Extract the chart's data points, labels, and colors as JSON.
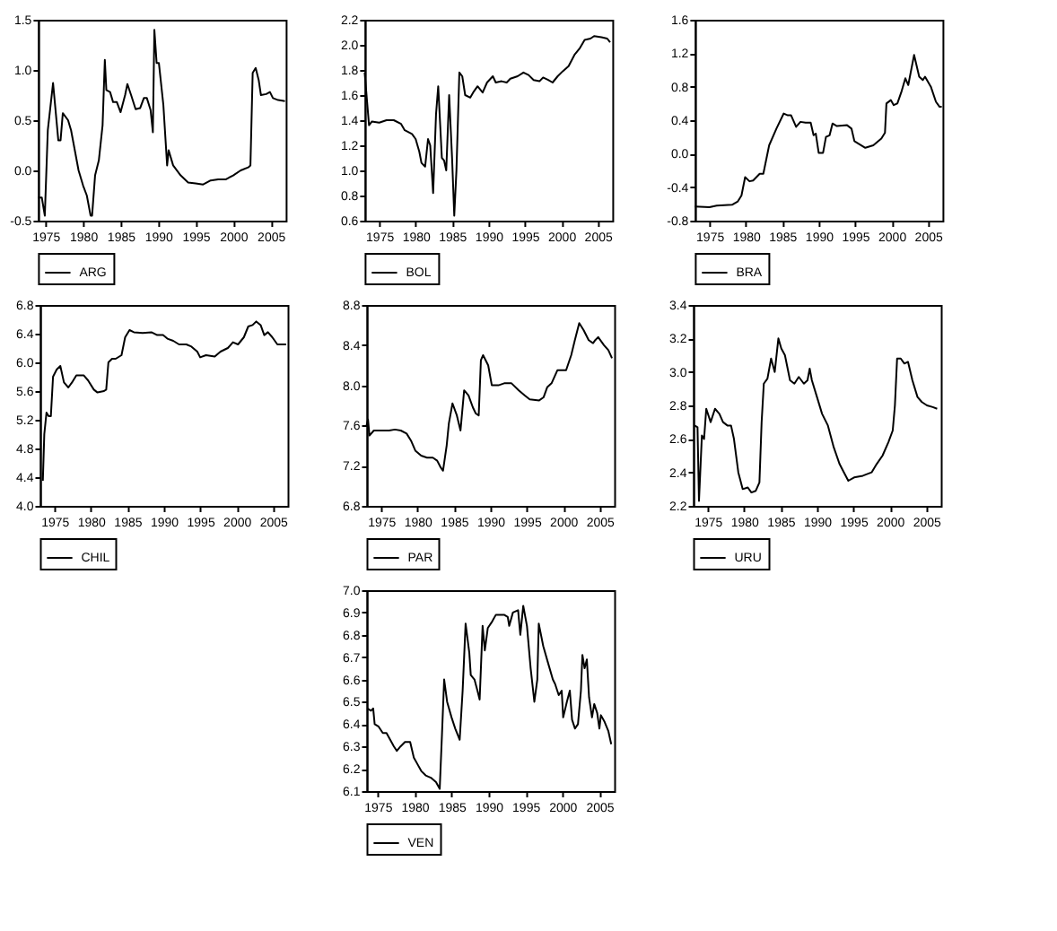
{
  "chart_data": [
    {
      "type": "line",
      "xlim": [
        1974,
        2007
      ],
      "xticks": [
        1975,
        1980,
        1985,
        1990,
        1995,
        2000,
        2005
      ],
      "ylim": [
        -0.5,
        1.5
      ],
      "yticks": [
        -0.5,
        {
          "value": 0,
          "label": "0.0"
        },
        0.5,
        {
          "value": 1,
          "label": "1.0"
        },
        1.5
      ],
      "legend": "bottom",
      "x": [
        1974.0,
        1974.5,
        1974.9,
        1975.3,
        1976.0,
        1976.7,
        1977.0,
        1977.3,
        1978.0,
        1978.4,
        1979.4,
        1980.0,
        1980.5,
        1981.0,
        1981.2,
        1981.6,
        1982.1,
        1982.6,
        1982.9,
        1983.1,
        1983.6,
        1984.0,
        1984.5,
        1985.0,
        1985.6,
        1985.9,
        1986.4,
        1987.0,
        1987.6,
        1988.1,
        1988.5,
        1989.0,
        1989.3,
        1989.5,
        1989.8,
        1990.1,
        1990.7,
        1991.2,
        1991.4,
        1992.0,
        1993.0,
        1994.0,
        1995.0,
        1996.0,
        1997.0,
        1998.0,
        1999.0,
        2000.0,
        2001.0,
        2002.0,
        2002.3,
        2002.6,
        2003.0,
        2003.4,
        2003.7,
        2004.4,
        2004.9,
        2005.3,
        2006.0,
        2006.9
      ],
      "series": [
        {
          "name": "ARG",
          "color": "#000000",
          "values": [
            -0.27,
            -0.27,
            -0.45,
            0.4,
            0.87,
            0.3,
            0.3,
            0.57,
            0.5,
            0.4,
            0.0,
            -0.15,
            -0.25,
            -0.45,
            -0.45,
            -0.05,
            0.1,
            0.45,
            1.1,
            0.8,
            0.78,
            0.68,
            0.68,
            0.58,
            0.75,
            0.86,
            0.75,
            0.61,
            0.62,
            0.72,
            0.72,
            0.6,
            0.38,
            1.4,
            1.07,
            1.07,
            0.65,
            0.05,
            0.2,
            0.05,
            -0.05,
            -0.12,
            -0.13,
            -0.14,
            -0.1,
            -0.09,
            -0.09,
            -0.05,
            0.0,
            0.03,
            0.05,
            0.97,
            1.02,
            0.9,
            0.75,
            0.76,
            0.78,
            0.72,
            0.7,
            0.69
          ]
        }
      ]
    },
    {
      "type": "line",
      "xlim": [
        1973,
        2007
      ],
      "xticks": [
        1975,
        1980,
        1985,
        1990,
        1995,
        2000,
        2005
      ],
      "ylim": [
        0.6,
        2.2
      ],
      "yticks": [
        0.6,
        0.8,
        {
          "value": 1,
          "label": "1.0"
        },
        1.2,
        1.4,
        1.6,
        1.8,
        {
          "value": 2,
          "label": "2.0"
        },
        2.2
      ],
      "legend": "bottom",
      "x": [
        1973.0,
        1973.6,
        1974.0,
        1975.0,
        1976.0,
        1977.0,
        1978.0,
        1978.5,
        1979.5,
        1980.0,
        1980.5,
        1980.8,
        1981.3,
        1981.7,
        1982.0,
        1982.4,
        1982.8,
        1983.1,
        1983.6,
        1983.9,
        1984.2,
        1984.6,
        1985.0,
        1985.3,
        1985.6,
        1986.0,
        1986.4,
        1986.8,
        1987.5,
        1988.0,
        1988.5,
        1989.2,
        1989.8,
        1990.6,
        1991.0,
        1991.8,
        1992.5,
        1993.0,
        1994.0,
        1994.8,
        1995.5,
        1996.2,
        1997.0,
        1997.5,
        1998.2,
        1998.8,
        1999.5,
        2000.2,
        2001.0,
        2001.8,
        2002.5,
        2003.2,
        2004.0,
        2004.5,
        2005.5,
        2006.3,
        2006.7
      ],
      "series": [
        {
          "name": "BOL",
          "color": "#000000",
          "values": [
            1.78,
            1.36,
            1.39,
            1.38,
            1.4,
            1.4,
            1.37,
            1.32,
            1.29,
            1.25,
            1.15,
            1.06,
            1.03,
            1.25,
            1.2,
            0.82,
            1.45,
            1.67,
            1.1,
            1.08,
            1.0,
            1.6,
            1.1,
            0.64,
            1.0,
            1.78,
            1.75,
            1.6,
            1.58,
            1.63,
            1.67,
            1.62,
            1.7,
            1.75,
            1.7,
            1.71,
            1.7,
            1.73,
            1.75,
            1.78,
            1.76,
            1.72,
            1.71,
            1.74,
            1.72,
            1.7,
            1.75,
            1.79,
            1.83,
            1.92,
            1.97,
            2.04,
            2.05,
            2.07,
            2.06,
            2.05,
            2.02
          ]
        }
      ]
    },
    {
      "type": "line",
      "xlim": [
        1973,
        2007
      ],
      "xticks": [
        1975,
        1980,
        1985,
        1990,
        1995,
        2000,
        2005
      ],
      "ylim": [
        -0.8,
        1.6
      ],
      "yticks": [
        -0.8,
        -0.4,
        {
          "value": 0,
          "label": "0.0"
        },
        0.4,
        0.8,
        1.2,
        1.6
      ],
      "legend": "bottom",
      "x": [
        1973.0,
        1975.0,
        1976.0,
        1978.1,
        1978.9,
        1979.4,
        1979.9,
        1980.5,
        1981.0,
        1981.9,
        1982.4,
        1983.2,
        1984.2,
        1985.2,
        1985.7,
        1986.2,
        1986.9,
        1987.5,
        1988.2,
        1988.9,
        1989.3,
        1989.6,
        1990.0,
        1990.6,
        1991.0,
        1991.5,
        1991.9,
        1992.5,
        1993.9,
        1994.5,
        1994.9,
        1996.4,
        1997.5,
        1998.6,
        1999.1,
        1999.3,
        1999.9,
        2000.3,
        2000.8,
        2001.4,
        2001.9,
        2002.3,
        2003.1,
        2003.8,
        2004.3,
        2004.6,
        2005.4,
        2006.1,
        2006.6,
        2006.9
      ],
      "series": [
        {
          "name": "BRA",
          "color": "#000000",
          "values": [
            -0.63,
            -0.64,
            -0.62,
            -0.61,
            -0.57,
            -0.5,
            -0.28,
            -0.33,
            -0.32,
            -0.24,
            -0.24,
            0.1,
            0.3,
            0.48,
            0.46,
            0.46,
            0.32,
            0.38,
            0.37,
            0.37,
            0.22,
            0.24,
            0.01,
            0.01,
            0.2,
            0.22,
            0.36,
            0.33,
            0.34,
            0.3,
            0.15,
            0.07,
            0.1,
            0.18,
            0.25,
            0.6,
            0.64,
            0.58,
            0.6,
            0.75,
            0.9,
            0.82,
            1.18,
            0.92,
            0.88,
            0.92,
            0.8,
            0.62,
            0.56,
            0.56
          ]
        }
      ]
    },
    {
      "type": "line",
      "xlim": [
        1973,
        2007
      ],
      "xticks": [
        1975,
        1980,
        1985,
        1990,
        1995,
        2000,
        2005
      ],
      "ylim": [
        4.0,
        6.8
      ],
      "yticks": [
        {
          "value": 4,
          "label": "4.0"
        },
        4.4,
        4.8,
        5.2,
        5.6,
        {
          "value": 6,
          "label": "6.0"
        },
        6.4,
        6.8
      ],
      "legend": "bottom",
      "x": [
        1973.4,
        1973.6,
        1973.9,
        1974.2,
        1974.5,
        1974.8,
        1975.3,
        1975.8,
        1976.3,
        1976.9,
        1977.4,
        1978.0,
        1979.0,
        1979.6,
        1980.4,
        1980.9,
        1981.8,
        1982.1,
        1982.4,
        1982.9,
        1983.4,
        1984.2,
        1984.7,
        1985.3,
        1985.9,
        1987.1,
        1988.3,
        1989.1,
        1989.9,
        1990.5,
        1991.3,
        1992.1,
        1993.1,
        1993.8,
        1994.6,
        1995.0,
        1995.8,
        1997.0,
        1997.8,
        1998.8,
        1999.5,
        2000.2,
        2001.0,
        2001.6,
        2002.2,
        2002.7,
        2003.3,
        2003.8,
        2004.3,
        2004.9,
        2005.6,
        2006.4,
        2006.8
      ],
      "series": [
        {
          "name": "CHIL",
          "color": "#000000",
          "values": [
            4.35,
            5.0,
            5.3,
            5.25,
            5.25,
            5.8,
            5.9,
            5.95,
            5.72,
            5.65,
            5.72,
            5.82,
            5.82,
            5.75,
            5.62,
            5.58,
            5.6,
            5.62,
            6.0,
            6.05,
            6.05,
            6.1,
            6.35,
            6.45,
            6.42,
            6.41,
            6.42,
            6.38,
            6.38,
            6.33,
            6.3,
            6.25,
            6.25,
            6.22,
            6.15,
            6.07,
            6.1,
            6.08,
            6.15,
            6.2,
            6.28,
            6.25,
            6.35,
            6.5,
            6.52,
            6.57,
            6.52,
            6.38,
            6.42,
            6.35,
            6.25,
            6.25,
            6.25
          ]
        }
      ]
    },
    {
      "type": "line",
      "xlim": [
        1973,
        2007
      ],
      "xticks": [
        1975,
        1980,
        1985,
        1990,
        1995,
        2000,
        2005
      ],
      "ylim": [
        6.8,
        8.8
      ],
      "yticks": [
        6.8,
        7.2,
        7.6,
        {
          "value": 8,
          "label": "8.0"
        },
        8.4,
        8.8
      ],
      "legend": "bottom",
      "x": [
        1973.0,
        1973.2,
        1973.4,
        1974.0,
        1975.2,
        1976.1,
        1976.9,
        1977.7,
        1978.5,
        1979.1,
        1979.7,
        1980.5,
        1981.3,
        1982.1,
        1982.7,
        1983.2,
        1983.5,
        1984.0,
        1984.3,
        1984.8,
        1985.4,
        1985.9,
        1986.4,
        1987.0,
        1987.6,
        1988.0,
        1988.4,
        1988.7,
        1989.0,
        1989.7,
        1990.2,
        1991.1,
        1991.9,
        1992.9,
        1993.9,
        1994.7,
        1995.4,
        1996.7,
        1997.3,
        1997.8,
        1998.4,
        1999.2,
        2000.4,
        2001.1,
        2001.6,
        2002.2,
        2002.8,
        2003.5,
        2004.1,
        2004.4,
        2004.8,
        2005.6,
        2006.2,
        2006.7
      ],
      "series": [
        {
          "name": "PAR",
          "color": "#000000",
          "values": [
            7.6,
            7.66,
            7.5,
            7.55,
            7.55,
            7.55,
            7.56,
            7.55,
            7.52,
            7.45,
            7.35,
            7.3,
            7.28,
            7.28,
            7.25,
            7.18,
            7.15,
            7.4,
            7.62,
            7.82,
            7.7,
            7.55,
            7.95,
            7.9,
            7.78,
            7.72,
            7.7,
            8.25,
            8.3,
            8.2,
            8.0,
            8.0,
            8.02,
            8.02,
            7.95,
            7.9,
            7.86,
            7.85,
            7.88,
            7.98,
            8.02,
            8.15,
            8.15,
            8.3,
            8.45,
            8.62,
            8.55,
            8.45,
            8.42,
            8.45,
            8.48,
            8.4,
            8.35,
            8.27
          ]
        }
      ]
    },
    {
      "type": "line",
      "xlim": [
        1973,
        2007
      ],
      "xticks": [
        1975,
        1980,
        1985,
        1990,
        1995,
        2000,
        2005
      ],
      "ylim": [
        2.2,
        3.4
      ],
      "yticks": [
        2.2,
        2.4,
        2.6,
        2.8,
        {
          "value": 3,
          "label": "3.0"
        },
        3.2,
        3.4
      ],
      "legend": "bottom",
      "x": [
        1973.2,
        1973.6,
        1973.8,
        1974.2,
        1974.5,
        1974.8,
        1975.4,
        1976.0,
        1976.6,
        1977.1,
        1977.7,
        1978.2,
        1978.6,
        1979.2,
        1979.8,
        1980.5,
        1981.0,
        1981.6,
        1982.1,
        1982.4,
        1982.7,
        1983.2,
        1983.7,
        1984.2,
        1984.7,
        1985.1,
        1985.6,
        1986.3,
        1986.9,
        1987.5,
        1988.2,
        1988.7,
        1989.0,
        1989.3,
        1990.0,
        1990.7,
        1991.5,
        1992.3,
        1993.1,
        1993.7,
        1994.3,
        1995.1,
        1996.3,
        1997.5,
        1998.2,
        1999.0,
        1999.8,
        2000.4,
        2000.7,
        2001.0,
        2001.5,
        2002.0,
        2002.5,
        2003.1,
        2003.8,
        2004.4,
        2005.1,
        2005.9,
        2006.5
      ],
      "series": [
        {
          "name": "URU",
          "color": "#000000",
          "values": [
            2.68,
            2.67,
            2.23,
            2.62,
            2.6,
            2.78,
            2.7,
            2.78,
            2.75,
            2.7,
            2.68,
            2.68,
            2.6,
            2.4,
            2.3,
            2.31,
            2.28,
            2.29,
            2.34,
            2.7,
            2.93,
            2.96,
            3.08,
            3.0,
            3.2,
            3.14,
            3.1,
            2.95,
            2.93,
            2.97,
            2.93,
            2.95,
            3.02,
            2.95,
            2.85,
            2.75,
            2.68,
            2.55,
            2.45,
            2.4,
            2.35,
            2.37,
            2.38,
            2.4,
            2.45,
            2.5,
            2.58,
            2.65,
            2.8,
            3.08,
            3.08,
            3.05,
            3.06,
            2.95,
            2.85,
            2.82,
            2.8,
            2.79,
            2.78
          ]
        }
      ]
    },
    {
      "type": "line",
      "xlim": [
        1973.5,
        2007
      ],
      "xticks": [
        1975,
        1980,
        1985,
        1990,
        1995,
        2000,
        2005
      ],
      "ylim": [
        6.1,
        7.0
      ],
      "yticks": [
        6.1,
        6.2,
        6.3,
        6.4,
        6.5,
        6.6,
        6.7,
        6.8,
        6.9,
        {
          "value": 7,
          "label": "7.0"
        }
      ],
      "legend": "bottom",
      "x": [
        1973.6,
        1974.1,
        1974.4,
        1974.6,
        1975.1,
        1975.7,
        1976.2,
        1976.7,
        1977.2,
        1977.6,
        1978.1,
        1978.7,
        1979.4,
        1979.9,
        1980.4,
        1980.9,
        1981.5,
        1982.2,
        1982.9,
        1983.4,
        1983.7,
        1984.0,
        1984.4,
        1985.0,
        1985.5,
        1986.1,
        1986.5,
        1986.9,
        1987.4,
        1987.6,
        1988.1,
        1988.5,
        1988.8,
        1989.2,
        1989.5,
        1989.9,
        1990.5,
        1991.0,
        1991.7,
        1992.1,
        1992.6,
        1992.8,
        1993.3,
        1994.0,
        1994.3,
        1994.7,
        1995.2,
        1995.7,
        1996.2,
        1996.6,
        1996.8,
        1997.4,
        1998.0,
        1998.7,
        1999.0,
        1999.5,
        1999.9,
        2000.1,
        2000.6,
        2001.0,
        2001.3,
        2001.7,
        2002.1,
        2002.5,
        2002.7,
        2003.0,
        2003.3,
        2003.6,
        2004.0,
        2004.3,
        2004.7,
        2005.0,
        2005.2,
        2005.7,
        2006.2,
        2006.6
      ],
      "series": [
        {
          "name": "VEN",
          "color": "#000000",
          "values": [
            6.47,
            6.46,
            6.47,
            6.4,
            6.39,
            6.36,
            6.36,
            6.33,
            6.3,
            6.28,
            6.3,
            6.32,
            6.32,
            6.25,
            6.22,
            6.19,
            6.17,
            6.16,
            6.14,
            6.11,
            6.35,
            6.6,
            6.5,
            6.43,
            6.38,
            6.33,
            6.55,
            6.85,
            6.72,
            6.62,
            6.6,
            6.55,
            6.51,
            6.84,
            6.73,
            6.83,
            6.86,
            6.89,
            6.89,
            6.89,
            6.88,
            6.84,
            6.9,
            6.91,
            6.8,
            6.93,
            6.84,
            6.65,
            6.5,
            6.6,
            6.85,
            6.75,
            6.68,
            6.6,
            6.58,
            6.53,
            6.55,
            6.43,
            6.5,
            6.55,
            6.42,
            6.38,
            6.4,
            6.55,
            6.71,
            6.65,
            6.69,
            6.52,
            6.43,
            6.49,
            6.45,
            6.38,
            6.44,
            6.41,
            6.37,
            6.31
          ]
        }
      ]
    }
  ]
}
